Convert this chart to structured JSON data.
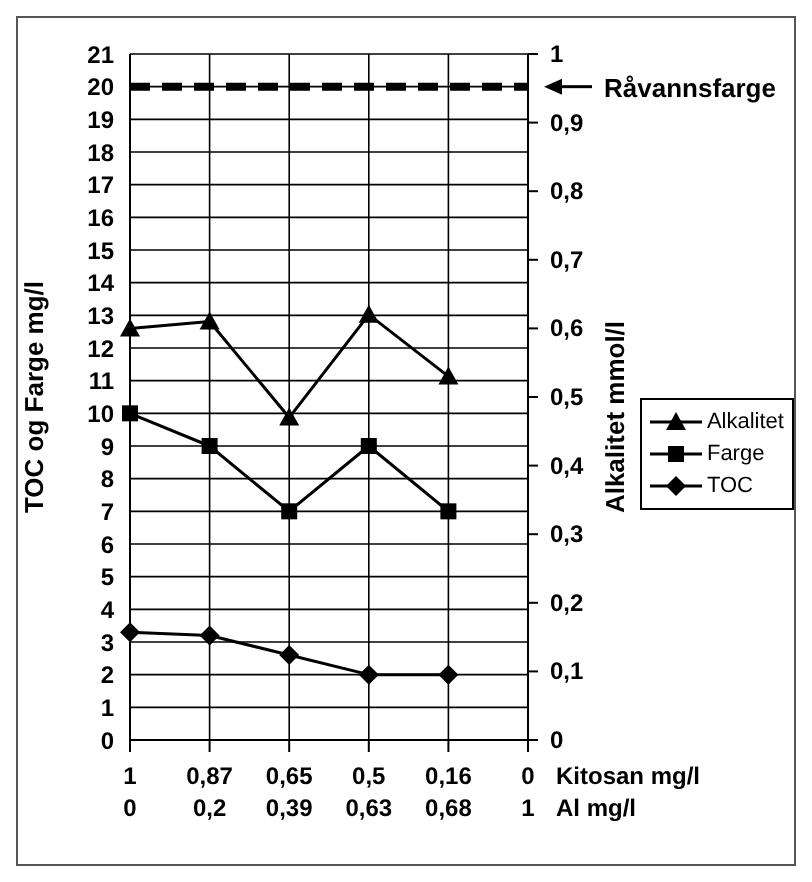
{
  "chart_data": {
    "type": "line",
    "ylabel": "TOC og Farge mg/l",
    "y2label": "Alkalitet mmol/l",
    "xlabel": "Kitosan mg/l\nAl mg/l",
    "categories": [
      "1\n0",
      "0,87\n0,2",
      "0,65\n0,39",
      "0,5\n0,63",
      "0,16\n0,68",
      "0\n1"
    ],
    "series": [
      {
        "name": "Alkalitet",
        "color": "#000000",
        "marker": "triangle",
        "axis": "y2",
        "values": [
          0.6,
          0.61,
          0.47,
          0.62,
          0.53,
          null
        ]
      },
      {
        "name": "Farge",
        "color": "#000000",
        "marker": "square",
        "values": [
          10,
          9,
          7,
          9,
          7,
          null
        ]
      },
      {
        "name": "TOC",
        "color": "#000000",
        "marker": "diamond",
        "values": [
          3.3,
          3.2,
          2.6,
          2.0,
          2.0,
          null
        ]
      }
    ],
    "ylim": [
      0,
      21
    ],
    "yticks": [
      0,
      1,
      2,
      3,
      4,
      5,
      6,
      7,
      8,
      9,
      10,
      11,
      12,
      13,
      14,
      15,
      16,
      17,
      18,
      19,
      20,
      21
    ],
    "y2lim": [
      0,
      1
    ],
    "y2ticks": [
      {
        "value": 0,
        "label": "0"
      },
      {
        "value": 0.1,
        "label": "0,1"
      },
      {
        "value": 0.2,
        "label": "0,2"
      },
      {
        "value": 0.3,
        "label": "0,3"
      },
      {
        "value": 0.4,
        "label": "0,4"
      },
      {
        "value": 0.5,
        "label": "0,5"
      },
      {
        "value": 0.6,
        "label": "0,6"
      },
      {
        "value": 0.7,
        "label": "0,7"
      },
      {
        "value": 0.8,
        "label": "0,8"
      },
      {
        "value": 0.9,
        "label": "0,9"
      },
      {
        "value": 1,
        "label": "1"
      }
    ],
    "ref_lines": [
      {
        "axis": "y",
        "value": 20,
        "label": "Råvannsfarge",
        "color": "#000000",
        "line_style": "dashed"
      }
    ],
    "grid": true,
    "legend": "right",
    "line_style": "solid"
  }
}
